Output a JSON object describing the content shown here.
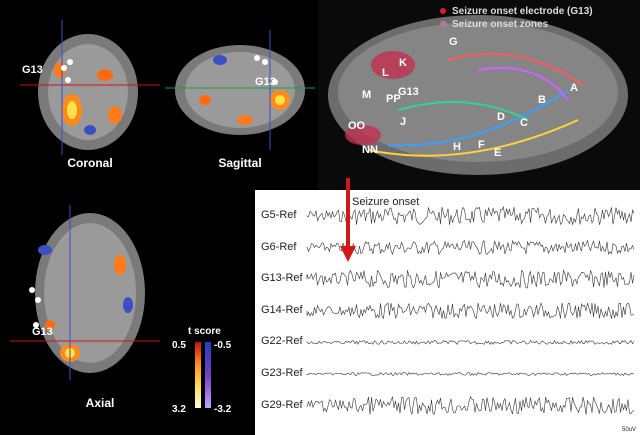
{
  "panels": {
    "coronal": "Coronal",
    "sagittal": "Sagittal",
    "axial": "Axial"
  },
  "electrode_label": "G13",
  "legend": {
    "onset_electrode": "Seizure onset electrode (G13)",
    "onset_zones": "Seizure onset zones",
    "electrode_color": "#e01b24",
    "zone_color": "#b07a9a"
  },
  "brain_3d_labels": [
    "G",
    "A",
    "B",
    "C",
    "D",
    "E",
    "F",
    "H",
    "J",
    "K",
    "L",
    "M",
    "PP",
    "OO",
    "NN",
    "G13"
  ],
  "colorbar": {
    "title": "t score",
    "pos_top": "0.5",
    "pos_bottom": "3.2",
    "neg_top": "-0.5",
    "neg_bottom": "-3.2"
  },
  "eeg": {
    "onset_label": "Seizure onset",
    "channels": [
      "G5-Ref",
      "G6-Ref",
      "G13-Ref",
      "G14-Ref",
      "G22-Ref",
      "G23-Ref",
      "G29-Ref"
    ],
    "scale_label": "50uV"
  }
}
